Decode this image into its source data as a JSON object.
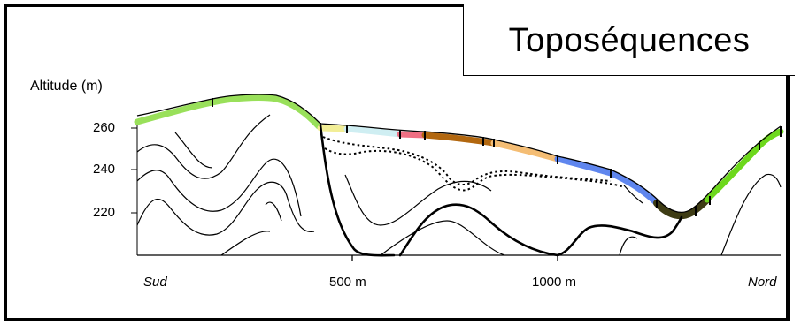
{
  "title": "Toposéquences",
  "y_axis": {
    "label": "Altitude (m)",
    "ticks": [
      "260",
      "240",
      "220"
    ]
  },
  "x_axis": {
    "left_label": "Sud",
    "ticks": [
      "500 m",
      "1000 m"
    ],
    "right_label": "Nord"
  },
  "soil_colors": {
    "lime_green": "#99e05a",
    "pale_yellow": "#f2ee96",
    "light_cyan": "#cfeef2",
    "pink": "#ef6f83",
    "brown": "#b2670f",
    "tan": "#f4bd74",
    "blue": "#5f86ee",
    "dark_olive": "#3e3c14",
    "bright_green": "#6dd81c"
  }
}
